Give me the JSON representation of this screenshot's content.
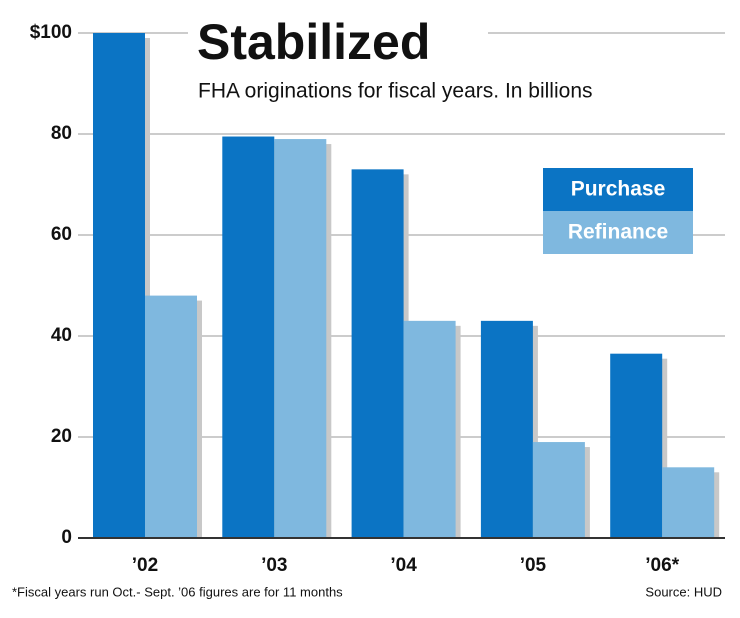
{
  "chart_data": {
    "type": "bar",
    "title": "Stabilized",
    "subtitle": "FHA originations for fiscal years. In billions",
    "categories": [
      "’02",
      "’03",
      "’04",
      "’05",
      "’06*"
    ],
    "series": [
      {
        "name": "Purchase",
        "color": "#0b74c4",
        "values": [
          100,
          79.5,
          73,
          43,
          36.5
        ]
      },
      {
        "name": "Refinance",
        "color": "#7fb8df",
        "values": [
          48,
          79,
          43,
          19,
          14
        ]
      }
    ],
    "ylim": [
      0,
      100
    ],
    "yticks": [
      0,
      20,
      40,
      60,
      80,
      {
        "value": 100,
        "label": "$100"
      }
    ],
    "grid": true,
    "footnote": "*Fiscal years run Oct.- Sept. ’06 figures are for 11 months",
    "source": "Source: HUD"
  }
}
